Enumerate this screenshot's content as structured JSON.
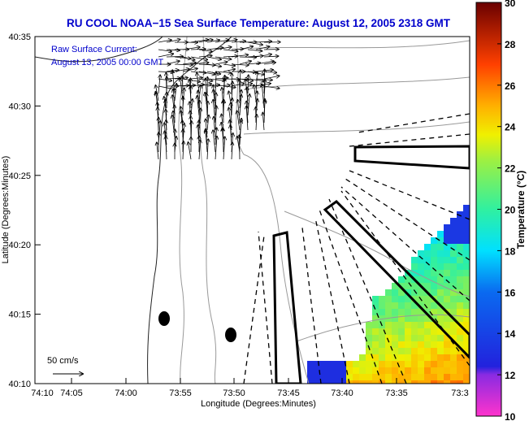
{
  "title": "RU COOL  NOAA−15  Sea Surface Temperature:  August 12, 2005 2318 GMT",
  "annotation": {
    "line1": "Raw Surface Current:",
    "line2": "August 13, 2005 00:00 GMT"
  },
  "scale_label": "50 cm/s",
  "axes": {
    "xlabel": "Longitude (Degrees:Minutes)",
    "ylabel": "Latitude (Degrees:Minutes)",
    "xticks": [
      "74:10",
      "74:05",
      "74:00",
      "73:55",
      "73:50",
      "73:45",
      "73:40",
      "73:35",
      "73:3"
    ],
    "yticks": [
      "40:35",
      "40:30",
      "40:25",
      "40:20",
      "40:15",
      "40:10"
    ]
  },
  "colorbar": {
    "label": "Temperature (°C)",
    "ticks": [
      "30",
      "28",
      "26",
      "24",
      "22",
      "20",
      "18",
      "16",
      "14",
      "12",
      "10"
    ],
    "range": [
      10,
      30
    ]
  },
  "colors": {
    "title": "#0000cc",
    "contour": "#999999"
  }
}
